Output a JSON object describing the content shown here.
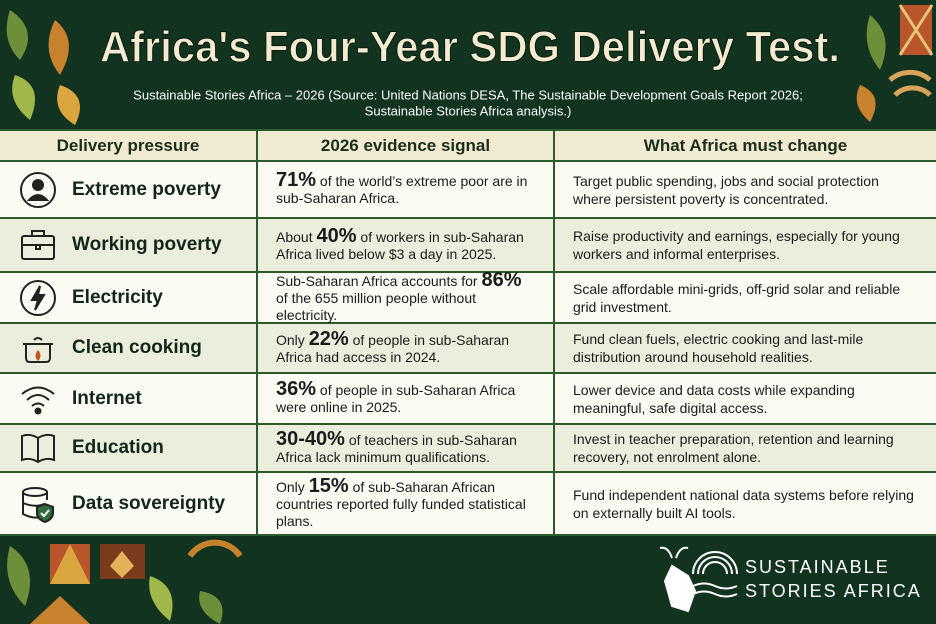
{
  "header": {
    "title": "Africa's Four-Year SDG Delivery Test.",
    "subtitle_lines": [
      "Sustainable Stories Africa – 2026 (Source: United Nations DESA, The Sustainable Development Goals Report 2026;",
      "Sustainable Stories Africa analysis.)"
    ]
  },
  "table": {
    "columns": [
      "Delivery pressure",
      "2026 evidence signal",
      "What Africa must change"
    ],
    "rows": [
      {
        "label": "Extreme poverty",
        "evidence": {
          "highlight": "71%",
          "after": "of the world’s extreme poor are in sub-Saharan Africa."
        },
        "change": "Target public spending, jobs and social protection where persistent poverty is concentrated."
      },
      {
        "label": "Working poverty",
        "evidence": {
          "before": "About",
          "highlight": "40%",
          "after": "of workers in sub-Saharan Africa lived below $3 a day in 2025."
        },
        "change": "Raise productivity and earnings, especially for young workers and informal enterprises."
      },
      {
        "label": "Electricity",
        "evidence": {
          "before": "Sub-Saharan Africa accounts for",
          "highlight": "86%",
          "after": "of the 655 million people without electricity."
        },
        "change": "Scale affordable mini-grids, off-grid solar and reliable grid investment."
      },
      {
        "label": "Clean cooking",
        "evidence": {
          "before": "Only",
          "highlight": "22%",
          "after": "of people in sub-Saharan Africa had access in 2024."
        },
        "change": "Fund clean fuels, electric cooking and last-mile distribution around household realities."
      },
      {
        "label": "Internet",
        "evidence": {
          "highlight": "36%",
          "after": "of people in sub-Saharan Africa were online in 2025."
        },
        "change": "Lower device and data costs while expanding meaningful, safe digital access."
      },
      {
        "label": "Education",
        "evidence": {
          "highlight": "30-40%",
          "after": "of teachers in sub-Saharan Africa lack minimum qualifications."
        },
        "change": "Invest in teacher preparation, retention and learning recovery, not enrolment alone."
      },
      {
        "label": "Data sovereignty",
        "evidence": {
          "before": "Only",
          "highlight": "15%",
          "after": "of sub-Saharan African countries reported fully funded statistical plans."
        },
        "change": "Fund independent national data systems before relying on externally built AI tools."
      }
    ]
  },
  "footer": {
    "logo_lines": [
      "SUSTAINABLE",
      "STORIES AFRICA"
    ]
  }
}
